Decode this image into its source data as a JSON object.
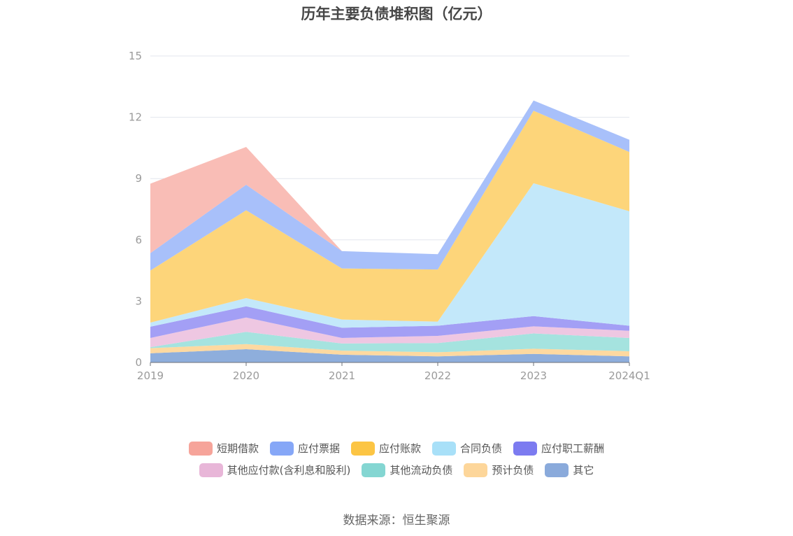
{
  "chart_data": {
    "type": "area",
    "stacked": true,
    "title": "历年主要负债堆积图（亿元）",
    "categories": [
      "2019",
      "2020",
      "2021",
      "2022",
      "2023",
      "2024Q1"
    ],
    "ylim": [
      0,
      15
    ],
    "yticks": [
      0,
      3,
      6,
      9,
      12,
      15
    ],
    "grid": true,
    "legend_position": "bottom",
    "series": [
      {
        "name": "其它",
        "color": "#8eaedc",
        "values": [
          0.45,
          0.65,
          0.38,
          0.3,
          0.42,
          0.3
        ]
      },
      {
        "name": "预计负债",
        "color": "#fdd9a0",
        "values": [
          0.25,
          0.25,
          0.2,
          0.2,
          0.25,
          0.25
        ]
      },
      {
        "name": "其他流动负债",
        "color": "#a5e3df",
        "values": [
          0.05,
          0.6,
          0.35,
          0.45,
          0.75,
          0.65
        ]
      },
      {
        "name": "其他应付款(含利息和股利)",
        "color": "#eec7e2",
        "values": [
          0.45,
          0.7,
          0.27,
          0.35,
          0.35,
          0.35
        ]
      },
      {
        "name": "应付职工薪酬",
        "color": "#a39ff5",
        "values": [
          0.55,
          0.55,
          0.5,
          0.5,
          0.5,
          0.25
        ]
      },
      {
        "name": "合同负债",
        "color": "#c3e8fa",
        "values": [
          0.2,
          0.4,
          0.4,
          0.2,
          6.5,
          5.6
        ]
      },
      {
        "name": "应付账款",
        "color": "#fdd57a",
        "values": [
          2.55,
          4.3,
          2.5,
          2.55,
          3.55,
          2.9
        ]
      },
      {
        "name": "应付票据",
        "color": "#a8c0fa",
        "values": [
          0.85,
          1.25,
          0.85,
          0.75,
          0.5,
          0.6
        ]
      },
      {
        "name": "短期借款",
        "color": "#f9bdb6",
        "values": [
          3.4,
          1.85,
          0.0,
          0.0,
          0.0,
          0.0
        ]
      }
    ],
    "legend_order": [
      "短期借款",
      "应付票据",
      "应付账款",
      "合同负债",
      "应付职工薪酬",
      "其他应付款(含利息和股利)",
      "其他流动负债",
      "预计负债",
      "其它"
    ],
    "legend_colors": {
      "短期借款": "#f6a49a",
      "应付票据": "#86a7f7",
      "应付账款": "#fcc544",
      "合同负债": "#a8e0f8",
      "应付职工薪酬": "#7c7bf0",
      "其他应付款(含利息和股利)": "#e8b6d8",
      "其他流动负债": "#84d6d2",
      "预计负债": "#fdd69a",
      "其它": "#8aaadb"
    },
    "source": "数据来源：恒生聚源"
  }
}
